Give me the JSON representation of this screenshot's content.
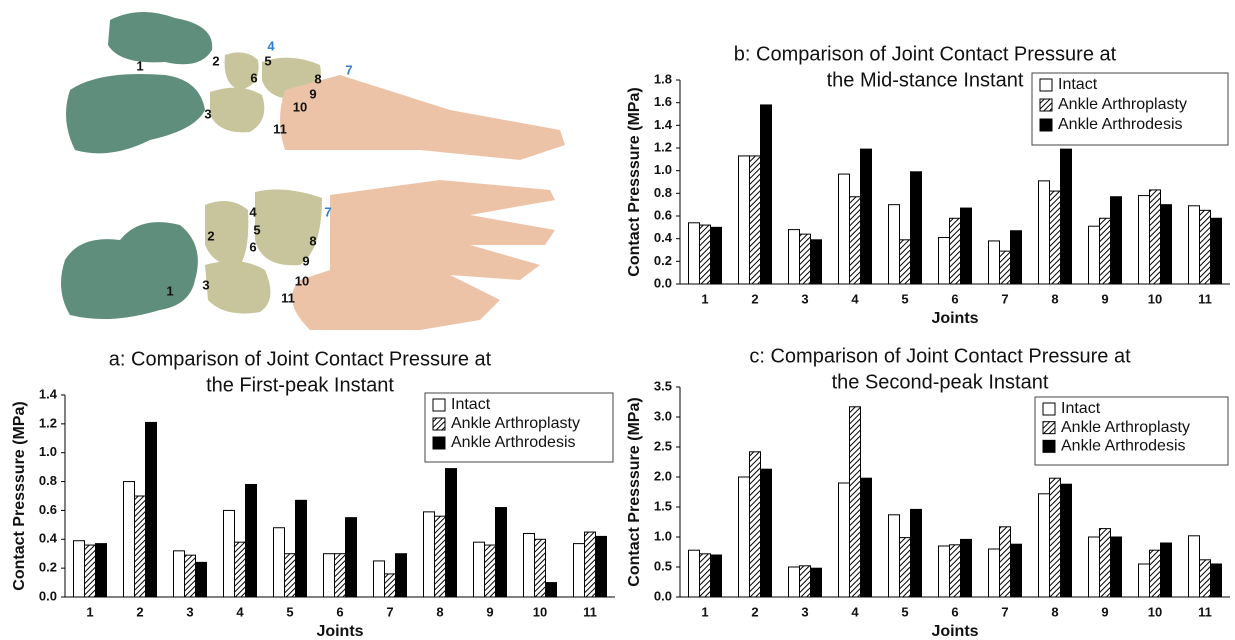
{
  "illustration": {
    "top_view": {
      "labels": [
        "1",
        "2",
        "4",
        "5",
        "6",
        "8",
        "7",
        "9",
        "10",
        "3",
        "11"
      ]
    },
    "bottom_view": {
      "labels": [
        "4",
        "7",
        "5",
        "2",
        "6",
        "8",
        "9",
        "10",
        "3",
        "1",
        "11"
      ]
    }
  },
  "chart_data": [
    {
      "type": "bar",
      "title": [
        "a: Comparison of Joint Contact Pressure at",
        "the First-peak Instant"
      ],
      "x_label": "Joints",
      "y_label": "Contact Presssure (MPa)",
      "categories": [
        "1",
        "2",
        "3",
        "4",
        "5",
        "6",
        "7",
        "8",
        "9",
        "10",
        "11"
      ],
      "series": [
        {
          "name": "Intact",
          "color": "#ffffff",
          "values": [
            0.39,
            0.8,
            0.32,
            0.6,
            0.48,
            0.3,
            0.25,
            0.59,
            0.38,
            0.44,
            0.37
          ]
        },
        {
          "name": "Ankle Arthroplasty",
          "color": "#ffffff",
          "hatch": true,
          "values": [
            0.36,
            0.7,
            0.29,
            0.38,
            0.3,
            0.3,
            0.16,
            0.56,
            0.36,
            0.4,
            0.45
          ]
        },
        {
          "name": "Ankle Arthrodesis",
          "color": "#000000",
          "values": [
            0.37,
            1.21,
            0.24,
            0.78,
            0.67,
            0.55,
            0.3,
            0.89,
            0.62,
            0.1,
            0.42
          ]
        }
      ],
      "ylim": [
        0,
        1.4
      ],
      "yticks": [
        {
          "value": 0,
          "label": "0.0"
        },
        0.2,
        0.4,
        0.6,
        0.8,
        {
          "value": 1,
          "label": "1.0"
        },
        1.2,
        1.4
      ],
      "grid": false,
      "legend": "top-right"
    },
    {
      "type": "bar",
      "title": [
        "b: Comparison of Joint Contact Pressure at",
        "the Mid-stance Instant"
      ],
      "x_label": "Joints",
      "y_label": "Contact Presssure (MPa)",
      "categories": [
        "1",
        "2",
        "3",
        "4",
        "5",
        "6",
        "7",
        "8",
        "9",
        "10",
        "11"
      ],
      "series": [
        {
          "name": "Intact",
          "color": "#ffffff",
          "values": [
            0.54,
            1.13,
            0.48,
            0.97,
            0.7,
            0.41,
            0.38,
            0.91,
            0.51,
            0.78,
            0.69
          ]
        },
        {
          "name": "Ankle Arthroplasty",
          "color": "#ffffff",
          "hatch": true,
          "values": [
            0.52,
            1.13,
            0.44,
            0.77,
            0.39,
            0.58,
            0.29,
            0.82,
            0.58,
            0.83,
            0.65
          ]
        },
        {
          "name": "Ankle Arthrodesis",
          "color": "#000000",
          "values": [
            0.5,
            1.58,
            0.39,
            1.19,
            0.99,
            0.67,
            0.47,
            1.19,
            0.77,
            0.7,
            0.58
          ]
        }
      ],
      "ylim": [
        0,
        1.8
      ],
      "yticks": [
        {
          "value": 0,
          "label": "0.0"
        },
        0.2,
        0.4,
        0.6,
        0.8,
        {
          "value": 1,
          "label": "1.0"
        },
        1.2,
        1.4,
        1.6,
        1.8
      ],
      "grid": false,
      "legend": "top-right"
    },
    {
      "type": "bar",
      "title": [
        "c: Comparison of Joint Contact Pressure at",
        "the Second-peak Instant"
      ],
      "x_label": "Joints",
      "y_label": "Contact Presssure (MPa)",
      "categories": [
        "1",
        "2",
        "3",
        "4",
        "5",
        "6",
        "7",
        "8",
        "9",
        "10",
        "11"
      ],
      "series": [
        {
          "name": "Intact",
          "color": "#ffffff",
          "values": [
            0.78,
            2.0,
            0.5,
            1.9,
            1.37,
            0.85,
            0.8,
            1.72,
            1.0,
            0.55,
            1.02
          ]
        },
        {
          "name": "Ankle Arthroplasty",
          "color": "#ffffff",
          "hatch": true,
          "values": [
            0.72,
            2.42,
            0.52,
            3.17,
            0.99,
            0.87,
            1.17,
            1.98,
            1.14,
            0.78,
            0.62
          ]
        },
        {
          "name": "Ankle Arthrodesis",
          "color": "#000000",
          "values": [
            0.7,
            2.13,
            0.48,
            1.98,
            1.46,
            0.96,
            0.88,
            1.88,
            1.0,
            0.9,
            0.55
          ]
        }
      ],
      "ylim": [
        0,
        3.5
      ],
      "yticks": [
        {
          "value": 0,
          "label": "0.0"
        },
        0.5,
        {
          "value": 1,
          "label": "1.0"
        },
        1.5,
        {
          "value": 2,
          "label": "2.0"
        },
        2.5,
        {
          "value": 3,
          "label": "3.0"
        },
        3.5
      ],
      "grid": false,
      "legend": "top-right"
    }
  ]
}
